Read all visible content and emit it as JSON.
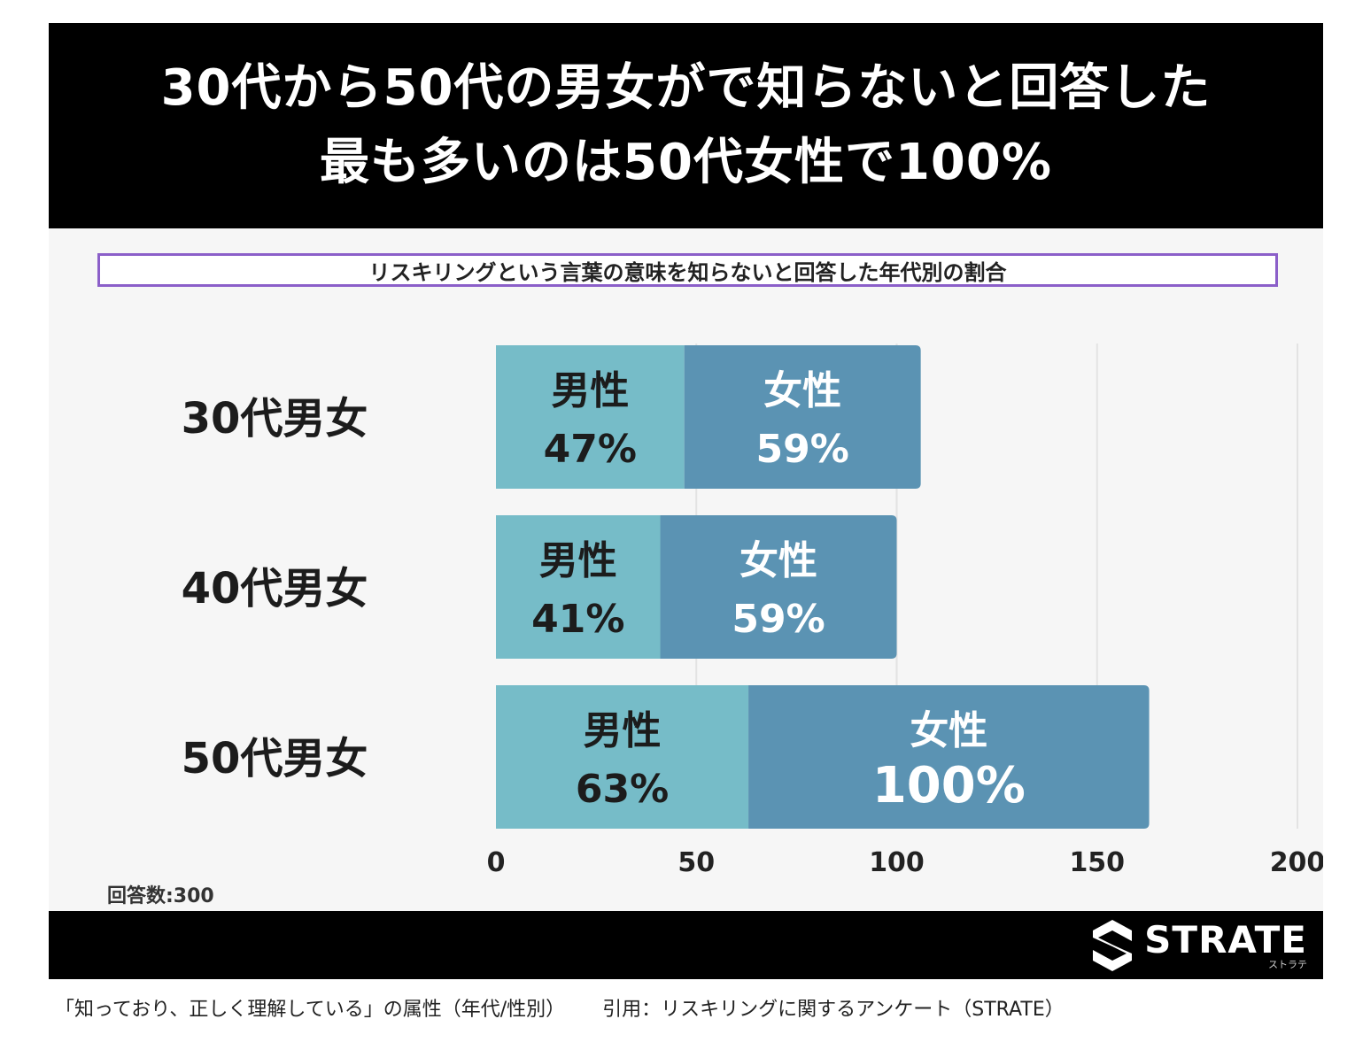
{
  "header": {
    "line1": "30代から50代の男女がで知らないと回答した",
    "line2": "最も多いのは50代女性で100%"
  },
  "subtitle": "リスキリングという言葉の意味を知らないと回答した年代別の割合",
  "sample_note": "回答数:300",
  "brand": {
    "name": "STRATE",
    "kana": "ストラテ",
    "icon": "strate-logo-icon"
  },
  "caption": {
    "left": "「知っており、正しく理解している」の属性（年代/性別）",
    "right": "引用：リスキリングに関するアンケート（STRATE）"
  },
  "colors": {
    "male": "#76bcc8",
    "female": "#5b93b3",
    "header_bg": "#000000",
    "subtitle_border": "#8b5fc9"
  },
  "chart_data": {
    "type": "bar",
    "orientation": "horizontal",
    "stacked": true,
    "categories": [
      "30代男女",
      "40代男女",
      "50代男女"
    ],
    "series": [
      {
        "name": "男性",
        "values": [
          47,
          41,
          63
        ],
        "labels": [
          "47%",
          "41%",
          "63%"
        ]
      },
      {
        "name": "女性",
        "values": [
          59,
          59,
          100
        ],
        "labels": [
          "59%",
          "59%",
          "100%"
        ]
      }
    ],
    "xlim": [
      0,
      200
    ],
    "xticks": [
      "0",
      "50",
      "100",
      "150",
      "200"
    ],
    "grid": true,
    "legend": "none"
  }
}
